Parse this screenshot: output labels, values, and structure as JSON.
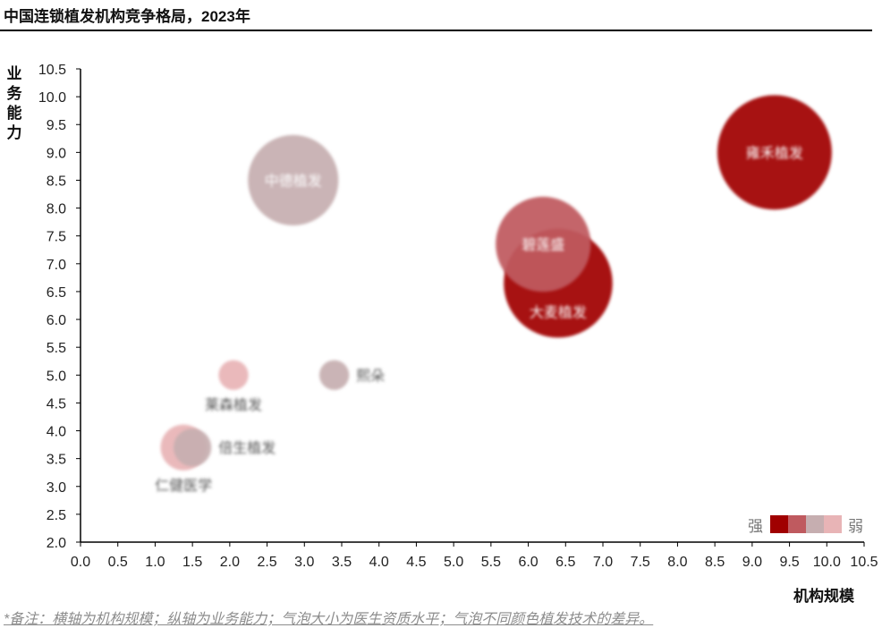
{
  "title": "中国连锁植发机构竞争格局，2023年",
  "note": "*备注：横轴为机构规模；纵轴为业务能力；气泡大小为医生资质水平；气泡不同颜色植发技术的差异。",
  "legend": {
    "strong": "强",
    "weak": "弱",
    "colors": [
      "#a00000",
      "#bf5a5f",
      "#c6aeb0",
      "#e8b4b6"
    ]
  },
  "chart_data": {
    "type": "scatter",
    "xlabel": "机构规模",
    "ylabel": "业务能力",
    "xlim": [
      0,
      10.5
    ],
    "ylim": [
      2.0,
      10.5
    ],
    "x_ticks": [
      "0.0",
      "0.5",
      "1.0",
      "1.5",
      "2.0",
      "2.5",
      "3.0",
      "3.5",
      "4.0",
      "4.5",
      "5.0",
      "5.5",
      "6.0",
      "6.5",
      "7.0",
      "7.5",
      "8.0",
      "8.5",
      "9.0",
      "9.5",
      "10.0",
      "10.5"
    ],
    "y_ticks": [
      "2.0",
      "2.5",
      "3.0",
      "3.5",
      "4.0",
      "4.5",
      "5.0",
      "5.5",
      "6.0",
      "6.5",
      "7.0",
      "7.5",
      "8.0",
      "8.5",
      "9.0",
      "9.5",
      "10.0",
      "10.5"
    ],
    "points": [
      {
        "label": "雍禾植发",
        "x": 9.3,
        "y": 9.0,
        "size": 1.0,
        "color": "#a00000",
        "label_pos": "inside"
      },
      {
        "label": "大麦植发",
        "x": 6.4,
        "y": 6.65,
        "size": 0.95,
        "color": "#a00000",
        "label_pos": "inside-bottom"
      },
      {
        "label": "碧莲盛",
        "x": 6.2,
        "y": 7.35,
        "size": 0.83,
        "color": "#bf5a5f",
        "label_pos": "inside"
      },
      {
        "label": "中德植发",
        "x": 2.85,
        "y": 8.5,
        "size": 0.79,
        "color": "#c6aeb0",
        "label_pos": "inside"
      },
      {
        "label": "熙朵",
        "x": 3.4,
        "y": 5.0,
        "size": 0.26,
        "color": "#c6aeb0",
        "label_pos": "right"
      },
      {
        "label": "莱森植发",
        "x": 2.05,
        "y": 5.0,
        "size": 0.26,
        "color": "#e8b4b6",
        "label_pos": "below"
      },
      {
        "label": "仁健医学",
        "x": 1.38,
        "y": 3.7,
        "size": 0.4,
        "color": "#e8b4b6",
        "label_pos": "below"
      },
      {
        "label": "倍生植发",
        "x": 1.5,
        "y": 3.7,
        "size": 0.33,
        "color": "#c6aeb0",
        "label_pos": "right"
      }
    ]
  }
}
